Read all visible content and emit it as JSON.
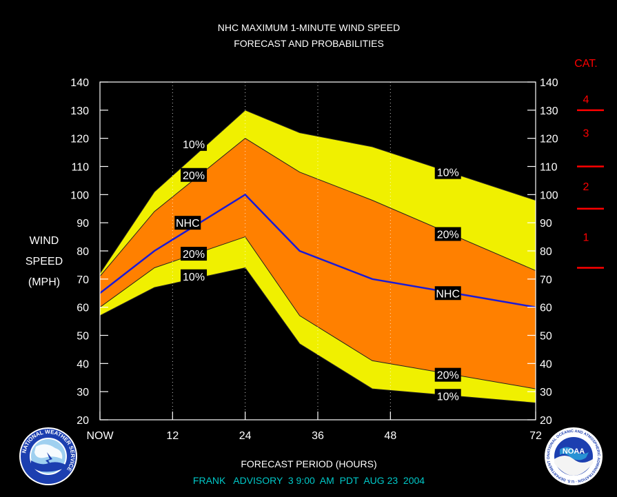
{
  "chart_data": {
    "type": "area",
    "title": "NHC MAXIMUM 1-MINUTE WIND SPEED",
    "subtitle": "FORECAST AND PROBABILITIES",
    "ylabel_lines": [
      "WIND",
      "SPEED",
      "(MPH)"
    ],
    "xlabel": "FORECAST PERIOD (HOURS)",
    "footer": "FRANK   ADVISORY  3 9:00  AM  PDT  AUG 23  2004",
    "xlim": [
      0,
      72
    ],
    "ylim": [
      20,
      140
    ],
    "y_ticks": [
      20,
      30,
      40,
      50,
      60,
      70,
      80,
      90,
      100,
      110,
      120,
      130,
      140
    ],
    "x_ticks": [
      {
        "value": 0,
        "label": "NOW"
      },
      {
        "value": 12,
        "label": "12"
      },
      {
        "value": 24,
        "label": "24"
      },
      {
        "value": 36,
        "label": "36"
      },
      {
        "value": 48,
        "label": "48"
      },
      {
        "value": 72,
        "label": "72"
      }
    ],
    "grid_x": [
      12,
      24,
      36,
      48
    ],
    "x": [
      0,
      9,
      24,
      33,
      45,
      72
    ],
    "series": [
      {
        "name": "10%",
        "role": "upper",
        "values": [
          72,
          101,
          130,
          122,
          117,
          98
        ]
      },
      {
        "name": "20%",
        "role": "upper",
        "values": [
          71,
          94,
          120,
          108,
          98,
          73
        ]
      },
      {
        "name": "NHC",
        "role": "forecast",
        "values": [
          65,
          80,
          100,
          80,
          70,
          60
        ]
      },
      {
        "name": "20%",
        "role": "lower",
        "values": [
          60,
          74,
          85,
          57,
          41,
          31
        ]
      },
      {
        "name": "10%",
        "role": "lower",
        "values": [
          57,
          67,
          74,
          47,
          31,
          26
        ]
      }
    ],
    "series_labels": [
      {
        "text": "10%",
        "x": 15.5,
        "y": 118
      },
      {
        "text": "20%",
        "x": 15.5,
        "y": 107
      },
      {
        "text": "NHC",
        "x": 14.5,
        "y": 90
      },
      {
        "text": "20%",
        "x": 15.5,
        "y": 79
      },
      {
        "text": "10%",
        "x": 15.5,
        "y": 71
      },
      {
        "text": "10%",
        "x": 57.5,
        "y": 108
      },
      {
        "text": "20%",
        "x": 57.5,
        "y": 86
      },
      {
        "text": "NHC",
        "x": 57.5,
        "y": 65
      },
      {
        "text": "20%",
        "x": 57.5,
        "y": 36
      },
      {
        "text": "10%",
        "x": 57.5,
        "y": 28.5
      }
    ],
    "category_title": "CAT.",
    "categories": [
      {
        "label": "4",
        "y": 134
      },
      {
        "label": "3",
        "y": 122
      },
      {
        "label": "2",
        "y": 103
      },
      {
        "label": "1",
        "y": 85
      }
    ],
    "category_thresholds": [
      130,
      110,
      95,
      74
    ],
    "colors": {
      "background": "#000000",
      "outer_band": "#f0f000",
      "inner_band": "#ff8000",
      "forecast_line": "#1a1ad8",
      "category": "#ff0000",
      "footer": "#00c8c8",
      "text": "#ffffff"
    }
  },
  "logos": {
    "left": {
      "name": "nws-logo",
      "text": "NATIONAL WEATHER SERVICE"
    },
    "right": {
      "name": "noaa-logo",
      "text": "NOAA",
      "ring_text": "NATIONAL OCEANIC AND ATMOSPHERIC ADMINISTRATION · U.S. DEPARTMENT OF COMMERCE"
    }
  }
}
